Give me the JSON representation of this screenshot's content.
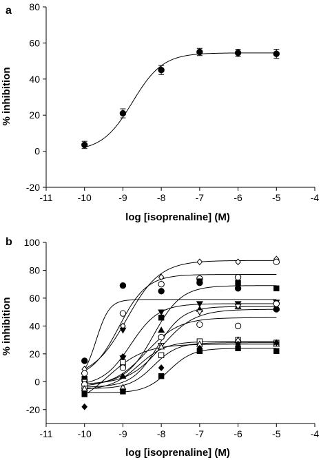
{
  "chart_data": [
    {
      "panel": "a",
      "type": "scatter",
      "xlabel": "log [isoprenaline] (M)",
      "ylabel": "% inhibition",
      "xlim": [
        -11,
        -4
      ],
      "ylim": [
        -20,
        80
      ],
      "xticks": [
        -11,
        -10,
        -9,
        -8,
        -7,
        -6,
        -5,
        -4
      ],
      "yticks": [
        -20,
        0,
        20,
        40,
        60,
        80
      ],
      "grid": false,
      "series": [
        {
          "marker": "filled-circle",
          "x": [
            -10,
            -9,
            -8,
            -7,
            -6,
            -5
          ],
          "y": [
            3.5,
            21,
            45,
            55,
            54.5,
            54
          ],
          "err": [
            2,
            2.5,
            2.5,
            2,
            2,
            2.5
          ],
          "fit": {
            "bottom": 0,
            "top": 54.5,
            "logEC50": -8.75,
            "hill": 1.1
          }
        }
      ]
    },
    {
      "panel": "b",
      "type": "scatter",
      "xlabel": "log [isoprenaline] (M)",
      "ylabel": "% inhibition",
      "xlim": [
        -11,
        -4
      ],
      "ylim": [
        -30,
        100
      ],
      "xticks": [
        -11,
        -10,
        -9,
        -8,
        -7,
        -6,
        -5,
        -4
      ],
      "yticks": [
        -20,
        0,
        20,
        40,
        60,
        80,
        100
      ],
      "grid": false,
      "series": [
        {
          "marker": "open-diamond",
          "x": [
            -10,
            -9,
            -8,
            -7,
            -6,
            -5
          ],
          "y": [
            9,
            40,
            75,
            86,
            86,
            88
          ],
          "fit": {
            "bottom": 3,
            "top": 87,
            "logEC50": -8.9,
            "hill": 1.0
          }
        },
        {
          "marker": "open-circle",
          "x": [
            -10,
            -9,
            -8,
            -7,
            -6,
            -5
          ],
          "y": [
            6,
            49,
            70,
            74,
            75,
            86
          ],
          "fit": {
            "bottom": 2,
            "top": 77,
            "logEC50": -9.1,
            "hill": 1.2
          }
        },
        {
          "marker": "filled-circle",
          "x": [
            -10,
            -9,
            -8,
            -7,
            -6,
            -5
          ],
          "y": [
            15,
            69,
            65,
            71,
            67,
            52
          ],
          "fit": {
            "bottom": 0,
            "top": 59,
            "logEC50": -9.7,
            "hill": 2.5
          }
        },
        {
          "marker": "filled-square",
          "x": [
            -10,
            -9,
            -8,
            -7,
            -6,
            -5
          ],
          "y": [
            2,
            12,
            46,
            72,
            71,
            67
          ],
          "fit": {
            "bottom": -2,
            "top": 69,
            "logEC50": -8.2,
            "hill": 1.2
          }
        },
        {
          "marker": "filled-down-triangle",
          "x": [
            -10,
            -9,
            -8,
            -7,
            -6,
            -5
          ],
          "y": [
            -1,
            37,
            50,
            56,
            56,
            57
          ],
          "fit": {
            "bottom": -3,
            "top": 56,
            "logEC50": -8.8,
            "hill": 1.2
          }
        },
        {
          "marker": "filled-up-triangle",
          "x": [
            -10,
            -9,
            -8,
            -7,
            -6,
            -5
          ],
          "y": [
            -3,
            4,
            37,
            52,
            54,
            53
          ],
          "fit": {
            "bottom": -4,
            "top": 54,
            "logEC50": -8.1,
            "hill": 1.3
          }
        },
        {
          "marker": "open-down-triangle",
          "x": [
            -10,
            -9,
            -8,
            -7,
            -6,
            -5
          ],
          "y": [
            0,
            17,
            26,
            50,
            54,
            55
          ],
          "fit": {
            "bottom": -2,
            "top": 52,
            "logEC50": -8.0,
            "hill": 1.0
          }
        },
        {
          "marker": "open-circle",
          "x": [
            -10,
            -9,
            -8,
            -7,
            -6,
            -5
          ],
          "y": [
            -2,
            10,
            32,
            41,
            40,
            56
          ],
          "fit": {
            "bottom": -4,
            "top": 46,
            "logEC50": -8.4,
            "hill": 1.0
          }
        },
        {
          "marker": "open-square",
          "x": [
            -10,
            -9,
            -8,
            -7,
            -6,
            -5
          ],
          "y": [
            -5,
            14,
            19,
            29,
            30,
            28
          ],
          "fit": {
            "bottom": -6,
            "top": 29,
            "logEC50": -8.6,
            "hill": 1.2
          }
        },
        {
          "marker": "open-up-triangle",
          "x": [
            -10,
            -9,
            -8,
            -7,
            -6,
            -5
          ],
          "y": [
            -5,
            -4,
            25,
            27,
            30,
            27
          ],
          "fit": {
            "bottom": -5,
            "top": 28,
            "logEC50": -8.2,
            "hill": 1.4
          }
        },
        {
          "marker": "filled-diamond",
          "x": [
            -10,
            -9,
            -8,
            -7,
            -6,
            -5
          ],
          "y": [
            -18,
            18,
            10,
            24,
            27,
            28
          ],
          "fit": {
            "bottom": -20,
            "top": 27,
            "logEC50": -9.4,
            "hill": 0.9
          }
        },
        {
          "marker": "filled-square",
          "x": [
            -10,
            -9,
            -8,
            -7,
            -6,
            -5
          ],
          "y": [
            -9,
            -7,
            4,
            22,
            24,
            22
          ],
          "fit": {
            "bottom": -8,
            "top": 24,
            "logEC50": -7.8,
            "hill": 1.4
          }
        }
      ]
    }
  ]
}
